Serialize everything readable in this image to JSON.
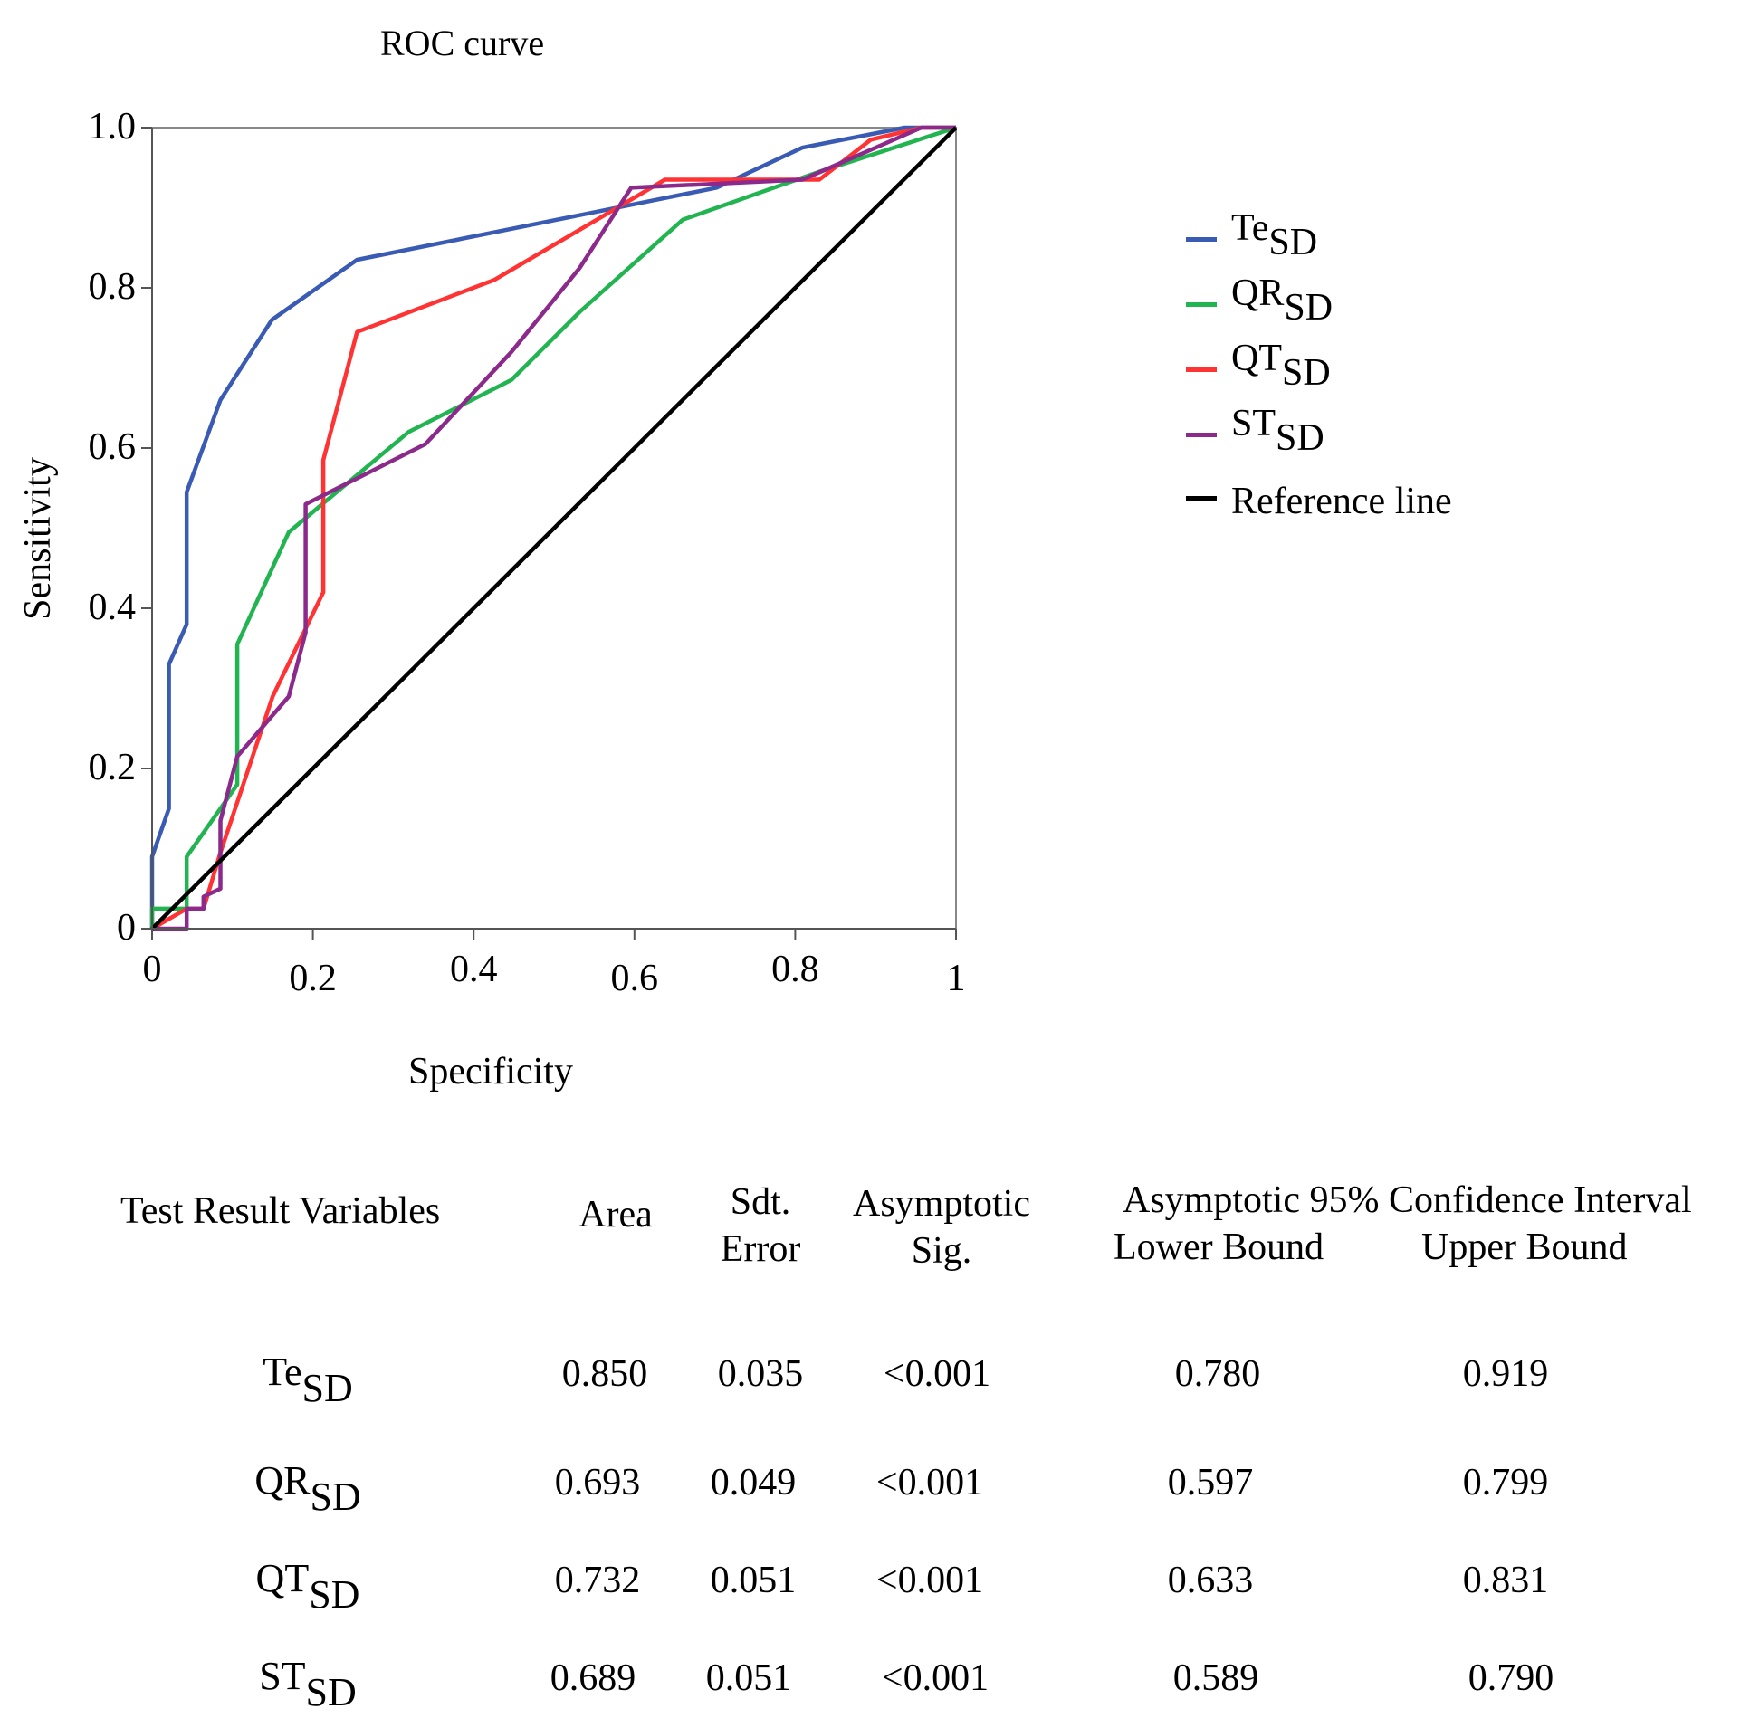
{
  "chart_data": {
    "type": "line",
    "title": "ROC curve",
    "xlabel": "Specificity",
    "ylabel": "Sensitivity",
    "xlim": [
      0,
      1
    ],
    "ylim": [
      0,
      1
    ],
    "x_ticks": [
      "0",
      "0.2",
      "0.4",
      "0.6",
      "0.8",
      "1"
    ],
    "y_ticks": [
      "0",
      "0.2",
      "0.4",
      "0.6",
      "0.8",
      "1.0"
    ],
    "series": [
      {
        "name": "Te",
        "sub": "SD",
        "color": "#3a5bb4",
        "points": [
          [
            0,
            0
          ],
          [
            0,
            0.09
          ],
          [
            0.021,
            0.15
          ],
          [
            0.021,
            0.33
          ],
          [
            0.043,
            0.38
          ],
          [
            0.043,
            0.545
          ],
          [
            0.085,
            0.66
          ],
          [
            0.149,
            0.76
          ],
          [
            0.255,
            0.835
          ],
          [
            0.702,
            0.925
          ],
          [
            0.809,
            0.975
          ],
          [
            0.936,
            1.0
          ],
          [
            1,
            1
          ]
        ]
      },
      {
        "name": "QR",
        "sub": "SD",
        "color": "#22b450",
        "points": [
          [
            0,
            0
          ],
          [
            0,
            0.025
          ],
          [
            0.043,
            0.025
          ],
          [
            0.043,
            0.09
          ],
          [
            0.106,
            0.18
          ],
          [
            0.106,
            0.355
          ],
          [
            0.17,
            0.495
          ],
          [
            0.319,
            0.62
          ],
          [
            0.447,
            0.685
          ],
          [
            0.532,
            0.77
          ],
          [
            0.66,
            0.885
          ],
          [
            0.83,
            0.945
          ],
          [
            1,
            1
          ]
        ]
      },
      {
        "name": "QT",
        "sub": "SD",
        "color": "#ff3333",
        "points": [
          [
            0,
            0
          ],
          [
            0.043,
            0.025
          ],
          [
            0.064,
            0.025
          ],
          [
            0.085,
            0.095
          ],
          [
            0.15,
            0.29
          ],
          [
            0.213,
            0.42
          ],
          [
            0.213,
            0.585
          ],
          [
            0.255,
            0.745
          ],
          [
            0.426,
            0.81
          ],
          [
            0.638,
            0.935
          ],
          [
            0.83,
            0.935
          ],
          [
            0.894,
            0.985
          ],
          [
            0.957,
            1.0
          ],
          [
            1,
            1
          ]
        ]
      },
      {
        "name": "ST",
        "sub": "SD",
        "color": "#8b2a8b",
        "points": [
          [
            0,
            0.0
          ],
          [
            0.043,
            0.0
          ],
          [
            0.043,
            0.025
          ],
          [
            0.064,
            0.025
          ],
          [
            0.064,
            0.04
          ],
          [
            0.085,
            0.05
          ],
          [
            0.085,
            0.135
          ],
          [
            0.106,
            0.215
          ],
          [
            0.17,
            0.29
          ],
          [
            0.191,
            0.37
          ],
          [
            0.191,
            0.53
          ],
          [
            0.34,
            0.605
          ],
          [
            0.447,
            0.72
          ],
          [
            0.532,
            0.825
          ],
          [
            0.596,
            0.925
          ],
          [
            0.809,
            0.935
          ],
          [
            0.957,
            1.0
          ],
          [
            1,
            1
          ]
        ]
      },
      {
        "name": "Reference line",
        "sub": "",
        "color": "#000000",
        "points": [
          [
            0,
            0
          ],
          [
            1,
            1
          ]
        ]
      }
    ]
  },
  "table": {
    "headers": {
      "variables": "Test Result Variables",
      "area": "Area",
      "se_line1": "Sdt.",
      "se_line2": "Error",
      "sig_line1": "Asymptotic",
      "sig_line2": "Sig.",
      "ci_title": "Asymptotic 95% Confidence Interval",
      "lower": "Lower Bound",
      "upper": "Upper Bound"
    },
    "rows": [
      {
        "name": "Te",
        "sub": "SD",
        "area": "0.850",
        "se": "0.035",
        "sig": "<0.001",
        "lower": "0.780",
        "upper": "0.919"
      },
      {
        "name": "QR",
        "sub": "SD",
        "area": "0.693",
        "se": "0.049",
        "sig": "<0.001",
        "lower": "0.597",
        "upper": "0.799"
      },
      {
        "name": "QT",
        "sub": "SD",
        "area": "0.732",
        "se": "0.051",
        "sig": "<0.001",
        "lower": "0.633",
        "upper": "0.831"
      },
      {
        "name": "ST",
        "sub": "SD",
        "area": "0.689",
        "se": "0.051",
        "sig": "<0.001",
        "lower": "0.589",
        "upper": "0.790"
      }
    ]
  }
}
